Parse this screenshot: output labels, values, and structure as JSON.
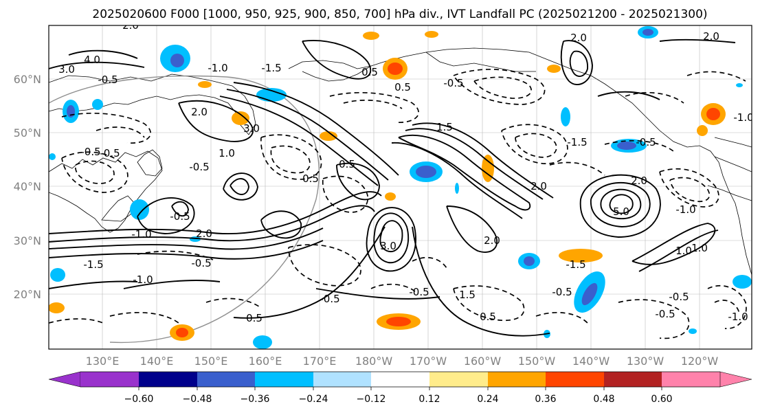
{
  "title": "2025020600 F000 [1000, 950, 925, 900, 850, 700] hPa div., IVT Landfall PC (2025021200 - 2025021300)",
  "map": {
    "lon_labels": [
      "130°E",
      "140°E",
      "150°E",
      "160°E",
      "170°E",
      "180°W",
      "170°W",
      "160°W",
      "150°W",
      "140°W",
      "130°W",
      "120°W"
    ],
    "lat_labels": [
      "60°N",
      "50°N",
      "40°N",
      "30°N",
      "20°N"
    ],
    "contour_labels": [
      "2.0",
      "4.0",
      "3.0",
      "-0.5",
      "-1.0",
      "-1.5",
      "2.0",
      "3.0",
      "-0.5",
      "1.0",
      "-0.5",
      "-0.5",
      "-0.5",
      "2.0",
      "5.0",
      "-1.0",
      "0.5",
      "-1.5",
      "-1.0",
      "-0.5",
      "2.0",
      "1.5",
      "0.5",
      "-0.5",
      "2.0",
      "-1.0",
      "-1.5",
      "-0.5",
      "-0.5",
      "-1.0",
      "1.0",
      "0.5",
      "3.0",
      "2.0",
      "1.0",
      "-1.5",
      "-0.5",
      "0.5",
      "0.5",
      "0.5",
      "-0.5",
      "1.5",
      "-0.5",
      "2.0",
      "-1.0",
      "-0.5",
      "2.0"
    ]
  },
  "colorbar": {
    "tick_labels": [
      "−0.60",
      "−0.48",
      "−0.36",
      "−0.24",
      "−0.12",
      "0.12",
      "0.24",
      "0.36",
      "0.48",
      "0.60"
    ],
    "colors": [
      "#9932CC",
      "#00008B",
      "#3A5FCD",
      "#00BFFF",
      "#B0E2FF",
      "#FFFFFF",
      "#FFEC8B",
      "#FFA500",
      "#FF4500",
      "#B22222",
      "#FF82AB"
    ]
  },
  "palette": {
    "frame": "#000000",
    "grid": "#808080",
    "tick_text": "#808080"
  }
}
